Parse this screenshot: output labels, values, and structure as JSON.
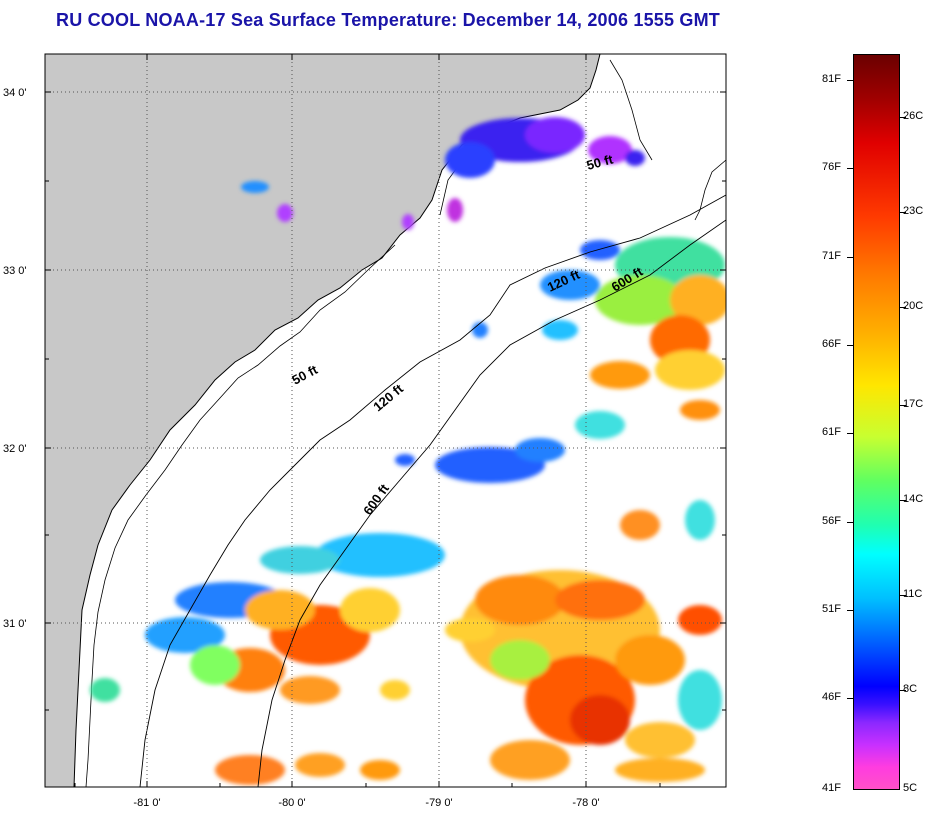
{
  "title": "RU COOL  NOAA-17  Sea Surface Temperature:  December 14, 2006 1555 GMT",
  "map": {
    "lat_labels": [
      "34 0'",
      "33 0'",
      "32 0'",
      "31 0'"
    ],
    "lon_labels": [
      "-81 0'",
      "-80 0'",
      "-79 0'",
      "-78 0'"
    ],
    "contours": [
      {
        "name": "50 ft",
        "label": "50 ft"
      },
      {
        "name": "50 ft north",
        "label": "50 ft"
      },
      {
        "name": "120 ft",
        "label": "120 ft"
      },
      {
        "name": "120 ft north",
        "label": "120 ft"
      },
      {
        "name": "600 ft",
        "label": "600 ft"
      },
      {
        "name": "600 ft north",
        "label": "600 ft"
      }
    ],
    "colors": {
      "land": "#c8c8c8",
      "no_data": "#ffffff",
      "title": "#1a14a8"
    }
  },
  "colorbar": {
    "fahrenheit_labels": [
      "81F",
      "76F",
      "71F",
      "66F",
      "61F",
      "56F",
      "51F",
      "46F",
      "41F"
    ],
    "celsius_labels": [
      "26C",
      "23C",
      "20C",
      "17C",
      "14C",
      "11C",
      "8C",
      "5C"
    ]
  }
}
